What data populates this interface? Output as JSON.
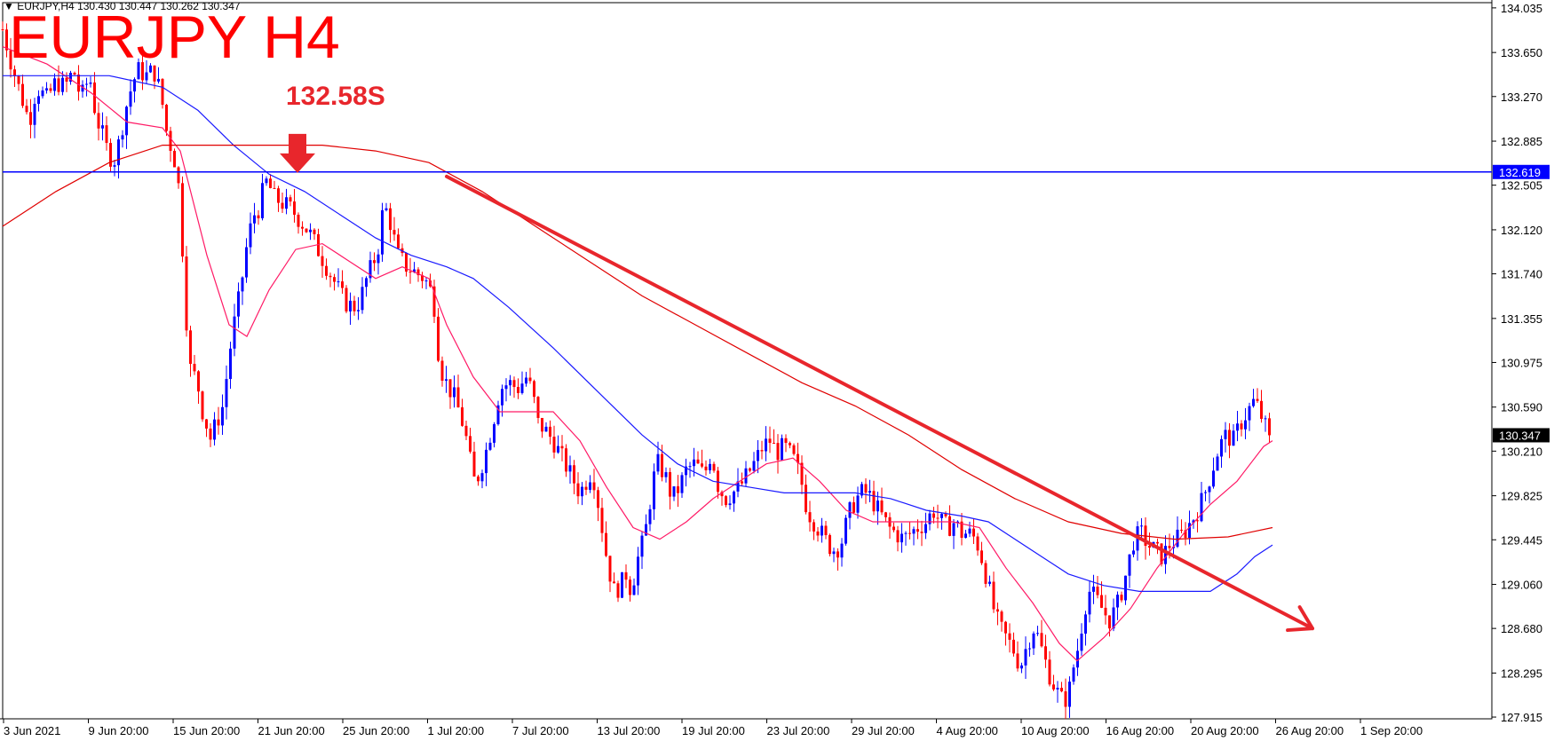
{
  "header": {
    "symbol": "EURJPY,H4",
    "ohlc": "130.430 130.447 130.262 130.347"
  },
  "annotations": {
    "title": "EURJPY H4",
    "level_label": "132.58S"
  },
  "colors": {
    "bull": "#0000ff",
    "bear": "#ff0000",
    "ma_fast": "#ff1a66",
    "ma_mid": "#1a1aff",
    "ma_slow": "#e00000",
    "hline": "#0000ff",
    "trendline": "#e8262c",
    "annotation": "#e8262c"
  },
  "chart_data": {
    "type": "candlestick",
    "symbol": "EURJPY",
    "timeframe": "H4",
    "ylim": [
      127.9,
      134.08
    ],
    "y_ticks": [
      "134.035",
      "133.650",
      "133.270",
      "132.885",
      "132.505",
      "132.120",
      "131.740",
      "131.355",
      "130.975",
      "130.590",
      "130.210",
      "129.825",
      "129.445",
      "129.060",
      "128.680",
      "128.295",
      "127.915"
    ],
    "x_ticks": [
      "3 Jun 2021",
      "9 Jun 20:00",
      "15 Jun 20:00",
      "21 Jun 20:00",
      "25 Jun 20:00",
      "1 Jul 20:00",
      "7 Jul 20:00",
      "13 Jul 20:00",
      "19 Jul 20:00",
      "23 Jul 20:00",
      "29 Jul 20:00",
      "4 Aug 20:00",
      "10 Aug 20:00",
      "16 Aug 20:00",
      "20 Aug 20:00",
      "26 Aug 20:00",
      "1 Sep 20:00"
    ],
    "horizontal_line": {
      "value": 132.619,
      "label": "132.619"
    },
    "current_price": {
      "value": 130.347,
      "label": "130.347"
    },
    "marked_level": 132.58,
    "price_path": [
      [
        0,
        133.85
      ],
      [
        10,
        133.55
      ],
      [
        20,
        133.3
      ],
      [
        30,
        133.05
      ],
      [
        38,
        133.35
      ],
      [
        50,
        133.25
      ],
      [
        60,
        133.4
      ],
      [
        70,
        133.35
      ],
      [
        80,
        133.5
      ],
      [
        88,
        133.25
      ],
      [
        98,
        133.45
      ],
      [
        105,
        133.1
      ],
      [
        112,
        132.95
      ],
      [
        118,
        132.8
      ],
      [
        125,
        132.7
      ],
      [
        132,
        132.9
      ],
      [
        138,
        133.15
      ],
      [
        145,
        133.35
      ],
      [
        152,
        133.5
      ],
      [
        162,
        133.45
      ],
      [
        170,
        133.5
      ],
      [
        178,
        133.3
      ],
      [
        185,
        132.95
      ],
      [
        193,
        132.75
      ],
      [
        198,
        132.5
      ],
      [
        203,
        131.9
      ],
      [
        208,
        131.2
      ],
      [
        213,
        130.8
      ],
      [
        218,
        130.9
      ],
      [
        223,
        130.6
      ],
      [
        228,
        130.5
      ],
      [
        233,
        130.3
      ],
      [
        238,
        130.4
      ],
      [
        243,
        130.5
      ],
      [
        248,
        130.6
      ],
      [
        253,
        130.9
      ],
      [
        258,
        131.2
      ],
      [
        263,
        131.4
      ],
      [
        268,
        131.6
      ],
      [
        273,
        131.9
      ],
      [
        278,
        132.1
      ],
      [
        283,
        132.25
      ],
      [
        288,
        132.3
      ],
      [
        293,
        132.45
      ],
      [
        298,
        132.55
      ],
      [
        305,
        132.4
      ],
      [
        315,
        132.35
      ],
      [
        325,
        132.3
      ],
      [
        335,
        132.2
      ],
      [
        345,
        132.1
      ],
      [
        355,
        131.95
      ],
      [
        365,
        131.8
      ],
      [
        375,
        131.65
      ],
      [
        385,
        131.5
      ],
      [
        395,
        131.45
      ],
      [
        402,
        131.5
      ],
      [
        410,
        131.7
      ],
      [
        418,
        131.85
      ],
      [
        424,
        132.0
      ],
      [
        429,
        132.35
      ],
      [
        436,
        132.2
      ],
      [
        445,
        131.9
      ],
      [
        455,
        131.8
      ],
      [
        465,
        131.75
      ],
      [
        475,
        131.7
      ],
      [
        485,
        131.55
      ],
      [
        490,
        131.1
      ],
      [
        496,
        130.85
      ],
      [
        503,
        130.75
      ],
      [
        510,
        130.65
      ],
      [
        518,
        130.45
      ],
      [
        524,
        130.25
      ],
      [
        530,
        129.95
      ],
      [
        536,
        130.0
      ],
      [
        544,
        130.2
      ],
      [
        552,
        130.45
      ],
      [
        560,
        130.75
      ],
      [
        570,
        130.8
      ],
      [
        580,
        130.75
      ],
      [
        590,
        130.85
      ],
      [
        597,
        130.7
      ],
      [
        603,
        130.45
      ],
      [
        610,
        130.4
      ],
      [
        620,
        130.3
      ],
      [
        630,
        130.15
      ],
      [
        640,
        130.0
      ],
      [
        650,
        129.85
      ],
      [
        657,
        129.95
      ],
      [
        664,
        130.05
      ],
      [
        672,
        129.7
      ],
      [
        680,
        129.3
      ],
      [
        688,
        129.0
      ],
      [
        696,
        129.05
      ],
      [
        702,
        129.15
      ],
      [
        708,
        129.0
      ],
      [
        714,
        129.25
      ],
      [
        720,
        129.4
      ],
      [
        726,
        129.6
      ],
      [
        732,
        129.95
      ],
      [
        738,
        130.1
      ],
      [
        746,
        130.0
      ],
      [
        754,
        129.8
      ],
      [
        762,
        129.9
      ],
      [
        770,
        130.05
      ],
      [
        780,
        130.1
      ],
      [
        790,
        130.0
      ],
      [
        798,
        130.2
      ],
      [
        806,
        129.9
      ],
      [
        814,
        129.8
      ],
      [
        822,
        129.85
      ],
      [
        830,
        129.9
      ],
      [
        838,
        130.0
      ],
      [
        846,
        130.1
      ],
      [
        856,
        130.25
      ],
      [
        864,
        130.3
      ],
      [
        872,
        130.2
      ],
      [
        880,
        130.25
      ],
      [
        890,
        130.15
      ],
      [
        898,
        130.0
      ],
      [
        906,
        129.7
      ],
      [
        914,
        129.6
      ],
      [
        922,
        129.5
      ],
      [
        930,
        129.4
      ],
      [
        938,
        129.35
      ],
      [
        946,
        129.45
      ],
      [
        952,
        129.65
      ],
      [
        958,
        129.75
      ],
      [
        966,
        129.85
      ],
      [
        974,
        129.85
      ],
      [
        982,
        129.75
      ],
      [
        990,
        129.65
      ],
      [
        998,
        129.55
      ],
      [
        1006,
        129.5
      ],
      [
        1014,
        129.45
      ],
      [
        1022,
        129.5
      ],
      [
        1030,
        129.55
      ],
      [
        1040,
        129.6
      ],
      [
        1048,
        129.7
      ],
      [
        1056,
        129.6
      ],
      [
        1064,
        129.55
      ],
      [
        1072,
        129.6
      ],
      [
        1080,
        129.5
      ],
      [
        1088,
        129.5
      ],
      [
        1096,
        129.45
      ],
      [
        1104,
        129.25
      ],
      [
        1110,
        129.05
      ],
      [
        1116,
        128.85
      ],
      [
        1122,
        128.7
      ],
      [
        1130,
        128.6
      ],
      [
        1138,
        128.5
      ],
      [
        1146,
        128.35
      ],
      [
        1154,
        128.55
      ],
      [
        1162,
        128.7
      ],
      [
        1170,
        128.5
      ],
      [
        1178,
        128.3
      ],
      [
        1186,
        128.15
      ],
      [
        1194,
        128.05
      ],
      [
        1200,
        128.1
      ],
      [
        1206,
        128.35
      ],
      [
        1212,
        128.55
      ],
      [
        1218,
        128.85
      ],
      [
        1224,
        129.0
      ],
      [
        1230,
        128.95
      ],
      [
        1238,
        128.85
      ],
      [
        1246,
        128.75
      ],
      [
        1254,
        128.85
      ],
      [
        1262,
        129.05
      ],
      [
        1268,
        129.25
      ],
      [
        1274,
        129.45
      ],
      [
        1282,
        129.5
      ],
      [
        1290,
        129.4
      ],
      [
        1298,
        129.35
      ],
      [
        1306,
        129.3
      ],
      [
        1314,
        129.4
      ],
      [
        1322,
        129.45
      ],
      [
        1330,
        129.5
      ],
      [
        1338,
        129.6
      ],
      [
        1346,
        129.7
      ],
      [
        1354,
        129.85
      ],
      [
        1362,
        130.05
      ],
      [
        1370,
        130.25
      ],
      [
        1378,
        130.35
      ],
      [
        1386,
        130.3
      ],
      [
        1394,
        130.45
      ],
      [
        1402,
        130.55
      ],
      [
        1410,
        130.65
      ],
      [
        1418,
        130.5
      ],
      [
        1424,
        130.38
      ],
      [
        1430,
        130.35
      ]
    ],
    "moving_averages": [
      {
        "id": "fast",
        "points": [
          [
            0,
            133.7
          ],
          [
            50,
            133.55
          ],
          [
            100,
            133.3
          ],
          [
            140,
            133.05
          ],
          [
            180,
            133.0
          ],
          [
            200,
            132.8
          ],
          [
            230,
            131.9
          ],
          [
            255,
            131.3
          ],
          [
            275,
            131.2
          ],
          [
            300,
            131.6
          ],
          [
            330,
            131.95
          ],
          [
            360,
            132.0
          ],
          [
            390,
            131.85
          ],
          [
            420,
            131.7
          ],
          [
            450,
            131.8
          ],
          [
            480,
            131.7
          ],
          [
            500,
            131.3
          ],
          [
            530,
            130.85
          ],
          [
            560,
            130.55
          ],
          [
            590,
            130.55
          ],
          [
            620,
            130.55
          ],
          [
            650,
            130.3
          ],
          [
            680,
            129.9
          ],
          [
            710,
            129.55
          ],
          [
            740,
            129.45
          ],
          [
            770,
            129.6
          ],
          [
            800,
            129.8
          ],
          [
            830,
            129.95
          ],
          [
            860,
            130.1
          ],
          [
            890,
            130.15
          ],
          [
            920,
            129.95
          ],
          [
            950,
            129.7
          ],
          [
            980,
            129.6
          ],
          [
            1010,
            129.6
          ],
          [
            1040,
            129.6
          ],
          [
            1070,
            129.6
          ],
          [
            1100,
            129.55
          ],
          [
            1130,
            129.2
          ],
          [
            1160,
            128.9
          ],
          [
            1190,
            128.55
          ],
          [
            1210,
            128.4
          ],
          [
            1240,
            128.6
          ],
          [
            1270,
            128.85
          ],
          [
            1300,
            129.2
          ],
          [
            1330,
            129.5
          ],
          [
            1360,
            129.75
          ],
          [
            1390,
            129.95
          ],
          [
            1420,
            130.25
          ],
          [
            1430,
            130.3
          ]
        ]
      },
      {
        "id": "mid",
        "points": [
          [
            0,
            133.45
          ],
          [
            60,
            133.45
          ],
          [
            120,
            133.45
          ],
          [
            180,
            133.35
          ],
          [
            220,
            133.15
          ],
          [
            260,
            132.85
          ],
          [
            300,
            132.6
          ],
          [
            340,
            132.45
          ],
          [
            380,
            132.25
          ],
          [
            420,
            132.05
          ],
          [
            460,
            131.9
          ],
          [
            500,
            131.8
          ],
          [
            530,
            131.7
          ],
          [
            570,
            131.45
          ],
          [
            620,
            131.1
          ],
          [
            680,
            130.65
          ],
          [
            720,
            130.35
          ],
          [
            760,
            130.1
          ],
          [
            800,
            129.95
          ],
          [
            840,
            129.9
          ],
          [
            880,
            129.85
          ],
          [
            920,
            129.85
          ],
          [
            960,
            129.85
          ],
          [
            1000,
            129.8
          ],
          [
            1040,
            129.7
          ],
          [
            1080,
            129.65
          ],
          [
            1110,
            129.6
          ],
          [
            1140,
            129.45
          ],
          [
            1170,
            129.3
          ],
          [
            1200,
            129.15
          ],
          [
            1240,
            129.05
          ],
          [
            1280,
            129.0
          ],
          [
            1320,
            129.0
          ],
          [
            1360,
            129.0
          ],
          [
            1390,
            129.15
          ],
          [
            1410,
            129.3
          ],
          [
            1430,
            129.4
          ]
        ]
      },
      {
        "id": "slow",
        "points": [
          [
            0,
            132.15
          ],
          [
            60,
            132.45
          ],
          [
            120,
            132.7
          ],
          [
            180,
            132.85
          ],
          [
            240,
            132.85
          ],
          [
            300,
            132.85
          ],
          [
            360,
            132.85
          ],
          [
            420,
            132.8
          ],
          [
            480,
            132.7
          ],
          [
            540,
            132.45
          ],
          [
            600,
            132.15
          ],
          [
            660,
            131.85
          ],
          [
            720,
            131.55
          ],
          [
            780,
            131.3
          ],
          [
            840,
            131.05
          ],
          [
            900,
            130.8
          ],
          [
            960,
            130.6
          ],
          [
            1020,
            130.35
          ],
          [
            1080,
            130.05
          ],
          [
            1140,
            129.8
          ],
          [
            1200,
            129.6
          ],
          [
            1260,
            129.5
          ],
          [
            1320,
            129.45
          ],
          [
            1380,
            129.47
          ],
          [
            1430,
            129.55
          ]
        ]
      }
    ],
    "trendline": {
      "from": [
        500,
        132.58
      ],
      "to": [
        1475,
        128.68
      ]
    },
    "grid": false
  }
}
